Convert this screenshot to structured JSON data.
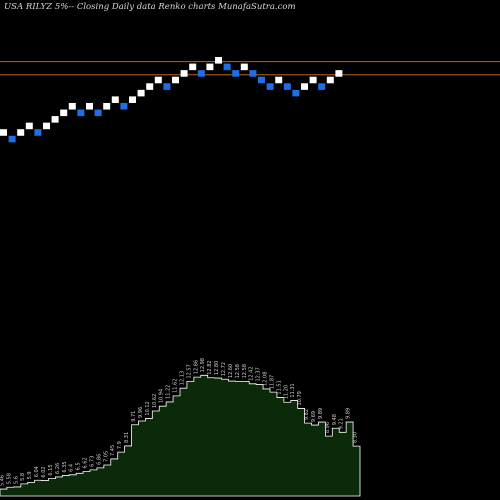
{
  "header": {
    "title": "USA RILYZ 5%--  Closing Daily data  Renko  charts MunafaSutra.com"
  },
  "chart_data": {
    "type": "renko",
    "title": "USA RILYZ 5%--  Closing Daily data  Renko  charts MunafaSutra.com",
    "grid": false,
    "colors": {
      "background": "#000000",
      "up_brick": "#ffffff",
      "down_brick": "#1e6fe6",
      "reference_line": "#b5651d",
      "volume_fill": "#0a2a0a",
      "volume_edge": "#ffffff",
      "label": "#d0d0d0"
    },
    "reference_lines": [
      16.7,
      16.2
    ],
    "brick_size": 0.25,
    "price_range": [
      10.0,
      19.05
    ],
    "bricks": [
      {
        "dir": "up",
        "level": 14.0
      },
      {
        "dir": "down",
        "level": 13.75
      },
      {
        "dir": "up",
        "level": 14.0
      },
      {
        "dir": "up",
        "level": 14.25
      },
      {
        "dir": "down",
        "level": 14.0
      },
      {
        "dir": "up",
        "level": 14.25
      },
      {
        "dir": "up",
        "level": 14.5
      },
      {
        "dir": "up",
        "level": 14.75
      },
      {
        "dir": "up",
        "level": 15.0
      },
      {
        "dir": "down",
        "level": 14.75
      },
      {
        "dir": "up",
        "level": 15.0
      },
      {
        "dir": "down",
        "level": 14.75
      },
      {
        "dir": "up",
        "level": 15.0
      },
      {
        "dir": "up",
        "level": 15.25
      },
      {
        "dir": "down",
        "level": 15.0
      },
      {
        "dir": "up",
        "level": 15.25
      },
      {
        "dir": "up",
        "level": 15.5
      },
      {
        "dir": "up",
        "level": 15.75
      },
      {
        "dir": "up",
        "level": 16.0
      },
      {
        "dir": "down",
        "level": 15.75
      },
      {
        "dir": "up",
        "level": 16.0
      },
      {
        "dir": "up",
        "level": 16.25
      },
      {
        "dir": "up",
        "level": 16.5
      },
      {
        "dir": "down",
        "level": 16.25
      },
      {
        "dir": "up",
        "level": 16.5
      },
      {
        "dir": "up",
        "level": 16.75
      },
      {
        "dir": "down",
        "level": 16.5
      },
      {
        "dir": "down",
        "level": 16.25
      },
      {
        "dir": "up",
        "level": 16.5
      },
      {
        "dir": "down",
        "level": 16.25
      },
      {
        "dir": "down",
        "level": 16.0
      },
      {
        "dir": "down",
        "level": 15.75
      },
      {
        "dir": "up",
        "level": 16.0
      },
      {
        "dir": "down",
        "level": 15.75
      },
      {
        "dir": "down",
        "level": 15.5
      },
      {
        "dir": "up",
        "level": 15.75
      },
      {
        "dir": "up",
        "level": 16.0
      },
      {
        "dir": "down",
        "level": 15.75
      },
      {
        "dir": "up",
        "level": 16.0
      },
      {
        "dir": "up",
        "level": 16.25
      }
    ],
    "volume_labels": [
      "5.46",
      "5.58",
      "5.6",
      "5.8",
      "5.9",
      "6.04",
      "6.02",
      "6.15",
      "6.26",
      "6.35",
      "6.4",
      "6.5",
      "6.62",
      "6.73",
      "6.86",
      "7.05",
      "7.45",
      "7.9",
      "8.31",
      "9.71",
      "9.96",
      "10.12",
      "10.62",
      "10.94",
      "11.22",
      "11.62",
      "12.13",
      "12.57",
      "12.86",
      "12.98",
      "12.82",
      "12.80",
      "12.72",
      "12.60",
      "12.58",
      "12.58",
      "12.42",
      "12.37",
      "12.08",
      "11.87",
      "11.51",
      "11.20",
      "11.31",
      "10.79",
      "9.82",
      "9.69",
      "9.89",
      "8.96",
      "9.48",
      "9.21",
      "9.89",
      "8.30"
    ],
    "volume_values": [
      5.46,
      5.58,
      5.6,
      5.8,
      5.9,
      6.04,
      6.02,
      6.15,
      6.26,
      6.35,
      6.4,
      6.5,
      6.62,
      6.73,
      6.86,
      7.05,
      7.45,
      7.9,
      8.31,
      9.71,
      9.96,
      10.12,
      10.62,
      10.94,
      11.22,
      11.62,
      12.13,
      12.57,
      12.86,
      12.98,
      12.82,
      12.8,
      12.72,
      12.6,
      12.58,
      12.58,
      12.42,
      12.37,
      12.08,
      11.87,
      11.51,
      11.2,
      11.31,
      10.79,
      9.82,
      9.69,
      9.89,
      8.96,
      9.48,
      9.21,
      9.89,
      8.3
    ],
    "volume_range": [
      5.0,
      13.2
    ]
  }
}
